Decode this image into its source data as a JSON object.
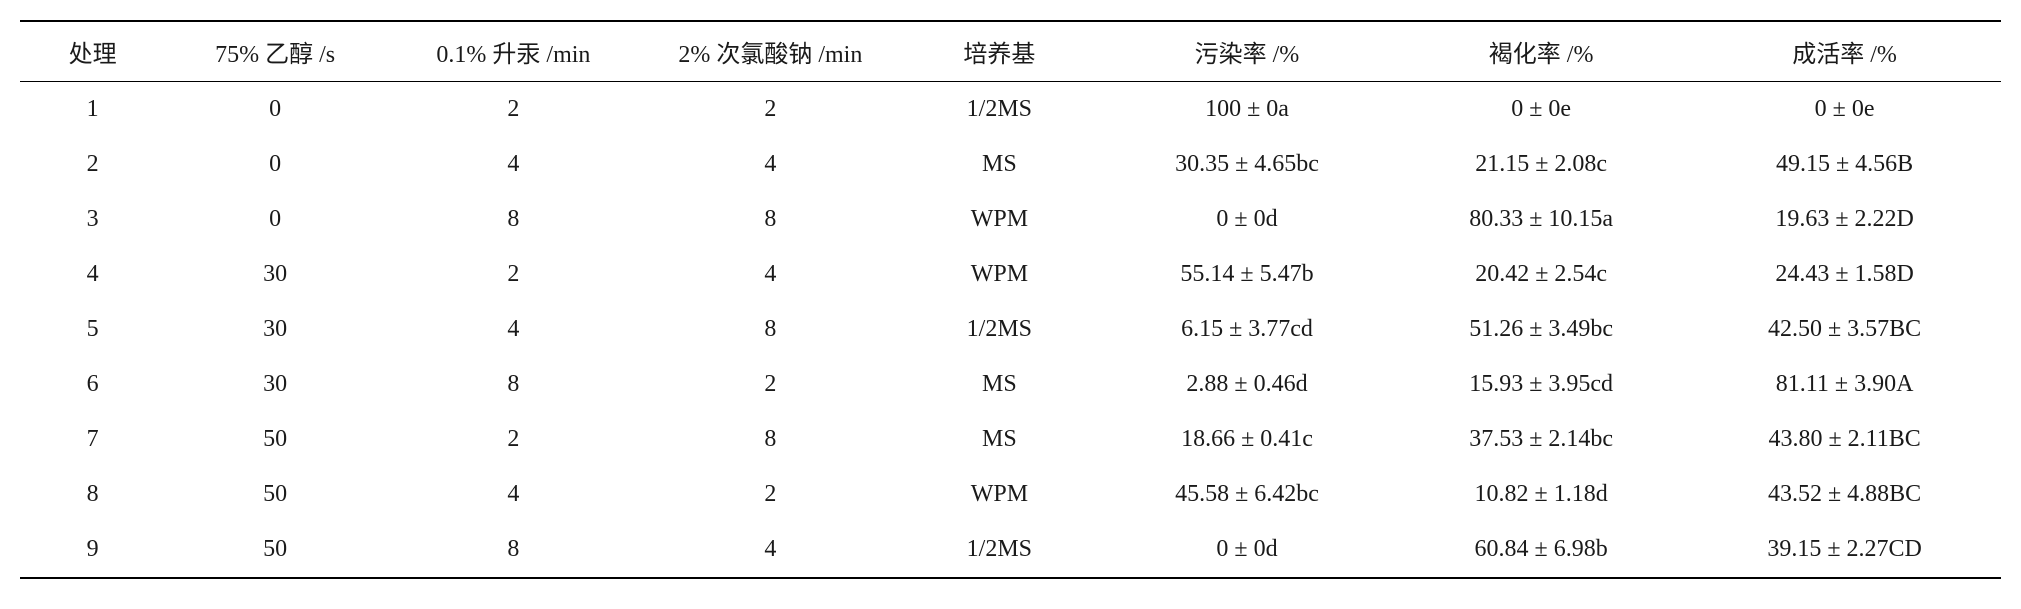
{
  "table": {
    "columns": [
      "处理",
      "75% 乙醇 /s",
      "0.1% 升汞 /min",
      "2% 次氯酸钠 /min",
      "培养基",
      "污染率 /%",
      "褐化率 /%",
      "成活率 /%"
    ],
    "rows": [
      [
        "1",
        "0",
        "2",
        "2",
        "1/2MS",
        "100 ± 0a",
        "0 ± 0e",
        "0 ± 0e"
      ],
      [
        "2",
        "0",
        "4",
        "4",
        "MS",
        "30.35 ± 4.65bc",
        "21.15 ± 2.08c",
        "49.15 ± 4.56B"
      ],
      [
        "3",
        "0",
        "8",
        "8",
        "WPM",
        "0 ± 0d",
        "80.33 ± 10.15a",
        "19.63 ± 2.22D"
      ],
      [
        "4",
        "30",
        "2",
        "4",
        "WPM",
        "55.14 ± 5.47b",
        "20.42 ± 2.54c",
        "24.43 ± 1.58D"
      ],
      [
        "5",
        "30",
        "4",
        "8",
        "1/2MS",
        "6.15 ± 3.77cd",
        "51.26 ± 3.49bc",
        "42.50 ± 3.57BC"
      ],
      [
        "6",
        "30",
        "8",
        "2",
        "MS",
        "2.88 ± 0.46d",
        "15.93 ± 3.95cd",
        "81.11 ± 3.90A"
      ],
      [
        "7",
        "50",
        "2",
        "8",
        "MS",
        "18.66 ± 0.41c",
        "37.53 ± 2.14bc",
        "43.80 ± 2.11BC"
      ],
      [
        "8",
        "50",
        "4",
        "2",
        "WPM",
        "45.58 ± 6.42bc",
        "10.82 ± 1.18d",
        "43.52 ± 4.88BC"
      ],
      [
        "9",
        "50",
        "8",
        "4",
        "1/2MS",
        "0 ± 0d",
        "60.84 ± 6.98b",
        "39.15 ± 2.27CD"
      ]
    ],
    "styling": {
      "font_family": "SimSun",
      "font_size_pt": 24,
      "text_color": "#1a1a1a",
      "background_color": "#ffffff",
      "border_top_width": 2,
      "border_header_width": 1,
      "border_bottom_width": 2,
      "border_color": "#000000",
      "text_align": "center",
      "column_widths_pct": [
        7,
        11,
        13,
        13,
        10,
        15,
        15,
        16
      ]
    }
  }
}
